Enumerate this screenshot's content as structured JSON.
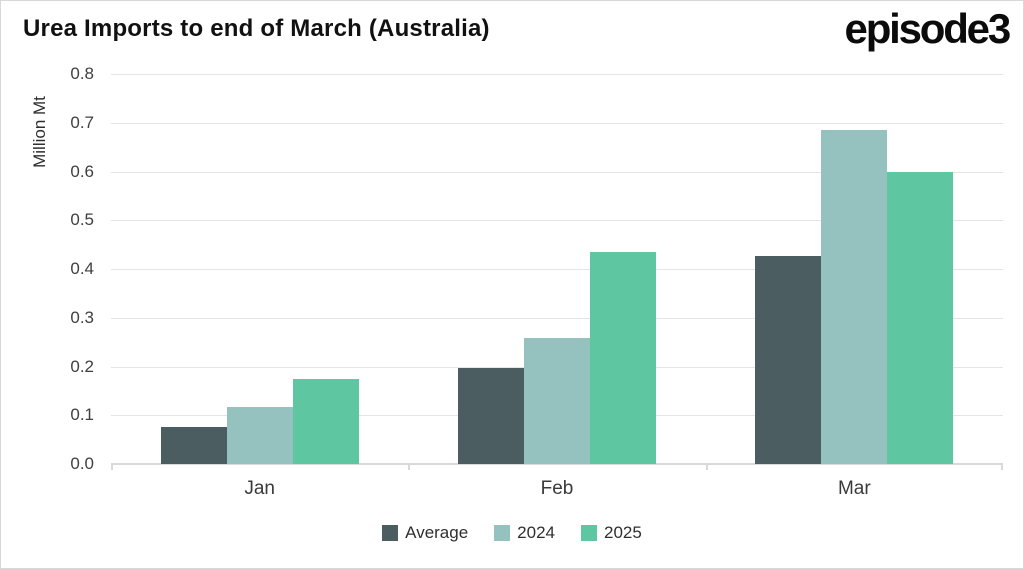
{
  "header": {
    "title": "Urea Imports to end of March (Australia)",
    "logo_text": "episode3"
  },
  "chart_data": {
    "type": "bar",
    "title": "Urea Imports to end of March (Australia)",
    "categories": [
      "Jan",
      "Feb",
      "Mar"
    ],
    "series": [
      {
        "name": "Average",
        "color": "#4b5d61",
        "values": [
          0.075,
          0.197,
          0.427
        ]
      },
      {
        "name": "2024",
        "color": "#95c1bf",
        "values": [
          0.116,
          0.259,
          0.686
        ]
      },
      {
        "name": "2025",
        "color": "#5ec6a0",
        "values": [
          0.174,
          0.435,
          0.599
        ]
      }
    ],
    "xlabel": "",
    "ylabel": "Million Mt",
    "ylim": [
      0,
      0.8
    ],
    "ytick_step": 0.1,
    "ytick_labels": [
      "0.0",
      "0.1",
      "0.2",
      "0.3",
      "0.4",
      "0.5",
      "0.6",
      "0.7",
      "0.8"
    ],
    "grid": true,
    "legend_position": "bottom",
    "style": {
      "grid_color": "#e4e4e4",
      "axis_color": "#d9d9d9",
      "tick_text_color": "#3f3f3f"
    }
  }
}
